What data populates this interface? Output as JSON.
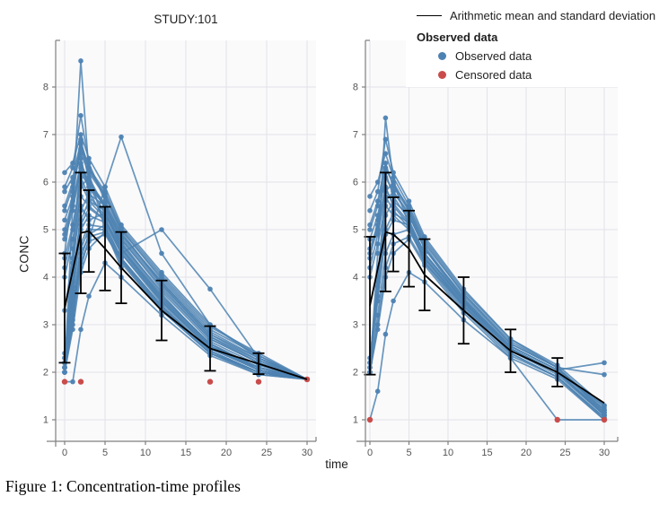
{
  "figure": {
    "panel_title": "STUDY:101",
    "xlabel": "time",
    "ylabel": "CONC",
    "caption": "Figure 1: Concentration-time profiles"
  },
  "legend": {
    "mean_label": "Arithmetic mean and standard deviation",
    "group_title": "Observed data",
    "items": [
      {
        "label": "Observed data",
        "color": "#4d82b2"
      },
      {
        "label": "Censored data",
        "color": "#c94c4b"
      }
    ]
  },
  "colors": {
    "observed": "#4d82b2",
    "censored": "#c94c4b",
    "mean": "#000000",
    "grid": "#e3e3e8",
    "panel_bg": "#fafafb",
    "axis": "#808080",
    "tick_text": "#555555"
  },
  "chart_data": {
    "type": "line",
    "title": "STUDY:101",
    "xlabel": "time",
    "ylabel": "CONC",
    "grid": true,
    "legend_position": "top-right",
    "panels": [
      {
        "name": "left",
        "x_ticks": [
          0,
          5,
          10,
          15,
          20,
          25,
          30
        ],
        "y_ticks": [
          1,
          2,
          3,
          4,
          5,
          6,
          7,
          8
        ],
        "xlim": [
          -1.1,
          31.2
        ],
        "ylim": [
          0.55,
          9.0
        ],
        "times": [
          0,
          1,
          2,
          3,
          5,
          7,
          12,
          18,
          24,
          30
        ],
        "mean": {
          "t": [
            0,
            2,
            3,
            5,
            7,
            12,
            18,
            24,
            30
          ],
          "value": [
            3.35,
            4.93,
            4.97,
            4.6,
            4.2,
            3.3,
            2.5,
            2.18,
            1.85
          ],
          "sd": [
            1.15,
            1.27,
            0.86,
            0.88,
            0.75,
            0.63,
            0.47,
            0.22,
            0
          ]
        },
        "lloq": 1.8,
        "censored": [
          [
            0,
            1.8
          ],
          [
            2,
            1.8
          ],
          [
            18,
            1.8
          ],
          [
            24,
            1.8
          ],
          [
            30,
            1.85
          ]
        ],
        "profiles": [
          [
            2.0,
            5.5,
            8.55,
            6.2,
            5.0,
            4.2,
            3.3,
            2.4,
            2.0,
            1.85
          ],
          [
            2.1,
            4.6,
            6.5,
            5.8,
            5.2,
            4.5,
            3.5,
            2.5,
            2.1,
            1.85
          ],
          [
            4.5,
            5.8,
            6.9,
            6.0,
            5.5,
            4.8,
            3.8,
            2.7,
            2.2,
            1.85
          ],
          [
            2.2,
            3.9,
            5.2,
            5.6,
            5.4,
            4.6,
            3.6,
            2.6,
            2.05,
            1.85
          ],
          [
            5.9,
            6.3,
            7.4,
            6.4,
            5.6,
            4.9,
            3.9,
            2.8,
            2.3,
            1.85
          ],
          [
            2.0,
            3.2,
            4.4,
            4.9,
            5.1,
            4.4,
            3.4,
            2.45,
            2.0,
            1.85
          ],
          [
            4.2,
            5.0,
            6.1,
            5.7,
            5.3,
            4.7,
            3.7,
            2.65,
            2.15,
            1.85
          ],
          [
            2.3,
            4.1,
            5.9,
            6.1,
            5.45,
            4.65,
            3.55,
            2.55,
            2.1,
            1.85
          ],
          [
            5.5,
            6.0,
            6.6,
            6.2,
            5.7,
            5.0,
            4.0,
            2.9,
            2.35,
            1.85
          ],
          [
            2.1,
            3.6,
            5.0,
            5.3,
            5.15,
            4.5,
            3.45,
            2.5,
            2.05,
            1.85
          ],
          [
            4.8,
            5.4,
            6.3,
            5.9,
            5.5,
            4.85,
            3.85,
            2.75,
            2.25,
            1.85
          ],
          [
            2.0,
            2.9,
            4.1,
            4.6,
            4.95,
            4.3,
            3.3,
            2.4,
            2.0,
            1.85
          ],
          [
            5.2,
            5.7,
            6.8,
            6.3,
            5.8,
            5.05,
            4.05,
            2.95,
            2.4,
            1.85
          ],
          [
            2.2,
            3.8,
            5.4,
            5.75,
            5.5,
            4.7,
            3.6,
            2.6,
            2.1,
            1.85
          ],
          [
            4.4,
            5.1,
            6.0,
            5.6,
            5.25,
            4.55,
            3.5,
            2.55,
            2.1,
            1.85
          ],
          [
            2.1,
            3.4,
            4.7,
            5.1,
            5.05,
            4.4,
            3.35,
            2.45,
            2.0,
            1.85
          ],
          [
            2.4,
            3.5,
            4.2,
            4.8,
            5.9,
            6.95,
            4.5,
            3.0,
            2.3,
            1.85
          ],
          [
            4.0,
            4.8,
            5.7,
            5.5,
            5.2,
            4.6,
            3.55,
            2.6,
            2.1,
            1.85
          ],
          [
            2.0,
            3.0,
            4.3,
            4.75,
            4.9,
            4.35,
            3.3,
            2.4,
            2.0,
            1.85
          ],
          [
            5.0,
            5.6,
            6.4,
            6.0,
            5.55,
            4.9,
            3.9,
            2.8,
            2.25,
            1.85
          ],
          [
            2.2,
            4.3,
            6.2,
            5.9,
            5.35,
            4.6,
            3.5,
            2.5,
            2.05,
            1.85
          ],
          [
            2.3,
            3.7,
            5.1,
            5.45,
            5.2,
            4.5,
            5.0,
            3.75,
            2.3,
            1.85
          ],
          [
            5.4,
            5.9,
            6.7,
            6.25,
            5.75,
            5.0,
            3.95,
            2.85,
            2.3,
            1.85
          ],
          [
            2.1,
            3.3,
            4.6,
            5.0,
            5.0,
            4.4,
            3.4,
            2.45,
            2.0,
            1.85
          ],
          [
            1.8,
            1.8,
            2.9,
            3.6,
            4.3,
            4.0,
            3.2,
            2.35,
            1.95,
            1.85
          ],
          [
            4.9,
            5.5,
            6.35,
            5.95,
            5.5,
            4.8,
            3.75,
            2.7,
            2.2,
            1.85
          ],
          [
            2.0,
            3.1,
            4.5,
            4.85,
            4.95,
            4.35,
            3.35,
            2.4,
            1.95,
            1.85
          ],
          [
            5.8,
            6.1,
            6.85,
            6.3,
            5.7,
            4.95,
            3.85,
            2.75,
            2.2,
            1.85
          ],
          [
            3.3,
            4.4,
            5.5,
            5.2,
            5.35,
            4.75,
            3.65,
            2.55,
            2.05,
            1.85
          ],
          [
            6.2,
            6.4,
            7.0,
            6.5,
            5.9,
            5.1,
            4.1,
            3.0,
            2.35,
            1.85
          ]
        ]
      },
      {
        "name": "right",
        "x_ticks": [
          0,
          5,
          10,
          15,
          20,
          25,
          30
        ],
        "y_ticks": [
          1,
          2,
          3,
          4,
          5,
          6,
          7,
          8
        ],
        "xlim": [
          -0.6,
          31.7
        ],
        "ylim": [
          0.55,
          9.0
        ],
        "times": [
          0,
          1,
          2,
          3,
          5,
          7,
          12,
          18,
          24,
          30
        ],
        "mean": {
          "t": [
            0,
            2,
            3,
            5,
            7,
            12,
            18,
            24,
            30
          ],
          "value": [
            3.4,
            4.95,
            4.9,
            4.6,
            4.05,
            3.3,
            2.45,
            2.0,
            1.35
          ],
          "sd": [
            1.45,
            1.25,
            0.78,
            0.8,
            0.75,
            0.7,
            0.45,
            0.3,
            0
          ]
        },
        "lloq": 1.0,
        "censored": [
          [
            0,
            1.0
          ],
          [
            24,
            1.0
          ],
          [
            30,
            1.0
          ]
        ],
        "profiles": [
          [
            2.0,
            4.5,
            7.35,
            6.0,
            5.1,
            4.3,
            3.4,
            2.5,
            2.0,
            1.3
          ],
          [
            4.4,
            5.2,
            6.2,
            5.7,
            5.2,
            4.5,
            3.5,
            2.5,
            2.0,
            1.1
          ],
          [
            2.1,
            3.8,
            5.3,
            5.6,
            5.3,
            4.6,
            3.6,
            2.6,
            2.1,
            1.2
          ],
          [
            5.7,
            6.0,
            6.6,
            6.1,
            5.5,
            4.8,
            3.7,
            2.7,
            2.1,
            1.15
          ],
          [
            2.0,
            3.2,
            4.5,
            4.9,
            5.0,
            4.4,
            3.4,
            2.4,
            1.9,
            1.05
          ],
          [
            4.6,
            5.1,
            5.9,
            5.5,
            5.1,
            4.4,
            3.45,
            2.5,
            2.0,
            1.1
          ],
          [
            2.2,
            4.0,
            5.8,
            6.0,
            5.4,
            4.65,
            3.55,
            2.55,
            2.05,
            1.2
          ],
          [
            5.1,
            5.6,
            6.4,
            5.9,
            5.4,
            4.7,
            3.65,
            2.65,
            2.1,
            1.25
          ],
          [
            2.0,
            3.0,
            4.2,
            4.7,
            4.85,
            4.3,
            3.3,
            2.35,
            1.9,
            1.0
          ],
          [
            4.2,
            4.9,
            5.7,
            5.4,
            5.05,
            4.4,
            3.4,
            2.45,
            1.95,
            1.1
          ],
          [
            2.1,
            3.5,
            4.9,
            5.2,
            5.1,
            4.45,
            3.45,
            2.5,
            2.0,
            1.15
          ],
          [
            5.4,
            5.8,
            6.9,
            6.2,
            5.6,
            4.85,
            3.75,
            2.7,
            2.15,
            1.3
          ],
          [
            2.3,
            3.6,
            5.0,
            5.35,
            5.15,
            4.5,
            3.5,
            2.5,
            2.0,
            1.1
          ],
          [
            4.0,
            4.7,
            5.5,
            5.3,
            5.0,
            4.35,
            3.35,
            2.4,
            1.9,
            1.05
          ],
          [
            2.0,
            2.9,
            4.0,
            4.5,
            4.8,
            4.25,
            3.25,
            2.3,
            1.85,
            1.0
          ],
          [
            4.8,
            5.3,
            6.1,
            5.8,
            5.3,
            4.6,
            3.55,
            2.55,
            2.05,
            1.2
          ],
          [
            1.0,
            1.6,
            2.8,
            3.5,
            4.1,
            3.9,
            3.1,
            2.3,
            1.0,
            1.0
          ],
          [
            4.5,
            5.0,
            5.85,
            5.55,
            5.15,
            4.5,
            3.5,
            2.5,
            2.0,
            1.15
          ],
          [
            2.2,
            3.9,
            5.6,
            5.8,
            5.35,
            4.6,
            3.5,
            2.55,
            2.05,
            2.2
          ],
          [
            5.0,
            5.5,
            6.3,
            5.95,
            5.45,
            4.75,
            3.65,
            2.6,
            2.1,
            1.95
          ]
        ]
      }
    ]
  }
}
